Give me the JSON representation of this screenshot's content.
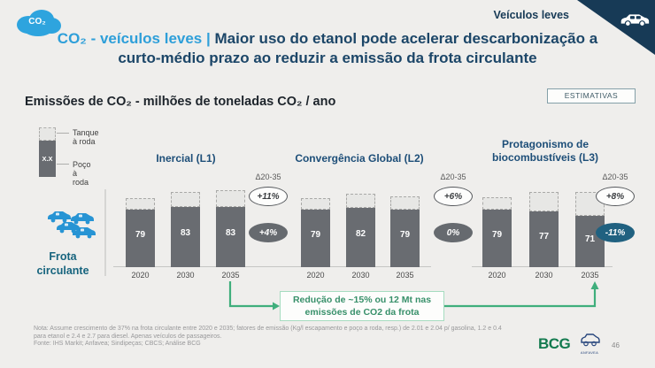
{
  "slide": {
    "header": {
      "corner_label": "Veículos leves",
      "co2_cloud_text": "CO₂",
      "title_highlight": "CO₂ - veículos leves",
      "title_separator": "|",
      "title_line1_rest": "Maior uso do etanol pode acelerar descarbonização a",
      "title_line2": "curto-médio prazo ao reduzir a emissão da frota circulante"
    },
    "subtitle": "Emissões de CO₂ - milhões de toneladas CO₂ / ano",
    "badge": "ESTIMATIVAS",
    "legend": {
      "tank_label": "Tanque à roda",
      "well_label": "Poço à roda",
      "value_placeholder": "X.X"
    },
    "row_label": "Frota circulante",
    "callout": "Redução de ~15% ou 12 Mt nas emissões de CO2 da frota",
    "footnote": {
      "line1": "Nota: Assume crescimento de 37% na frota circulante entre 2020 e 2035; fatores de emissão (Kg/l escapamento e poço a roda, resp.) de 2.01 e 2.04 p/ gasolina, 1.2 e 0.4",
      "line2": "para etanol e 2.4 e 2.7 para diesel. Apenas veículos de passageiros.",
      "line3": "Fonte: IHS Markit; Anfavea; Sindipeças; CBCS; Análise BCG"
    },
    "footer": {
      "bcg": "BCG",
      "anfavea": "ANFAVEA",
      "page": "46"
    },
    "colors": {
      "navy": "#1c4668",
      "light_blue": "#2e9fd9",
      "bar_gray": "#696c71",
      "cap_gray": "#e7e7e5",
      "green_arrow": "#3fae7c",
      "oval_blue": "#206180",
      "bcg_green": "#137a4f",
      "teal_label": "#17647e"
    }
  },
  "chart_data": {
    "type": "bar",
    "title": "Emissões de CO₂ - milhões de toneladas CO₂ / ano",
    "unit": "milhões de toneladas CO₂ / ano",
    "categories": [
      "2020",
      "2030",
      "2035"
    ],
    "delta_header": "Δ20-35",
    "segment_legend": {
      "dashed_top": "Tanque à roda",
      "solid_labeled": "Poço à roda"
    },
    "ylim": [
      0,
      110
    ],
    "scenarios": [
      {
        "name": "Inercial (L1)",
        "poco_a_roda": [
          79,
          83,
          83
        ],
        "tanque_cap_est": [
          16,
          21,
          23
        ],
        "delta_top": "+11%",
        "delta_bottom": "+4%",
        "delta_bottom_color": "gray"
      },
      {
        "name": "Convergência Global (L2)",
        "poco_a_roda": [
          79,
          82,
          79
        ],
        "tanque_cap_est": [
          16,
          20,
          18
        ],
        "delta_top": "+6%",
        "delta_bottom": "0%",
        "delta_bottom_color": "gray"
      },
      {
        "name": "Protagonismo de biocombustíveis (L3)",
        "poco_a_roda": [
          79,
          77,
          71
        ],
        "tanque_cap_est": [
          17,
          27,
          33
        ],
        "delta_top": "+8%",
        "delta_bottom": "-11%",
        "delta_bottom_color": "blue"
      }
    ]
  }
}
